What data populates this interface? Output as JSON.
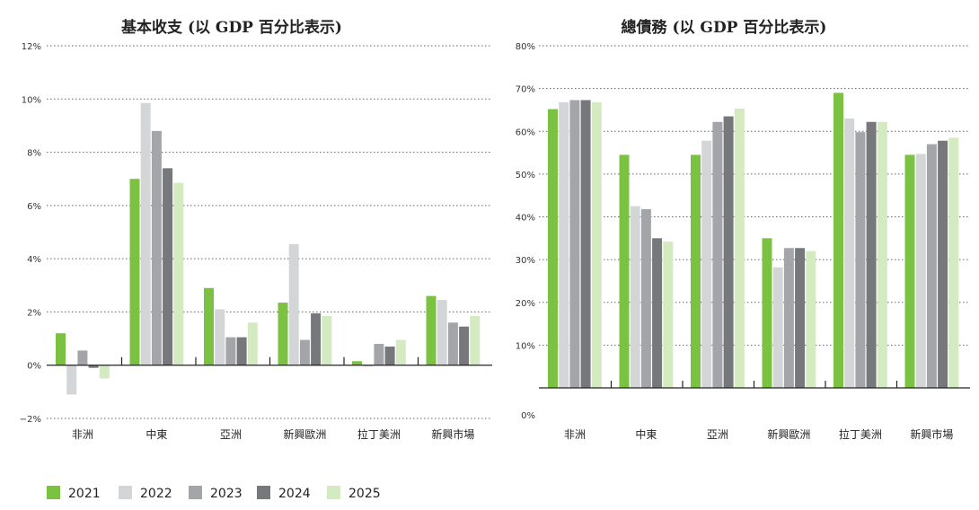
{
  "colors": {
    "2021": "#7cc242",
    "2022": "#d3d5d7",
    "2023": "#a3a5a8",
    "2024": "#77787b",
    "2025": "#d4eac0"
  },
  "legend": {
    "items": [
      {
        "label": "2021",
        "color": "#7cc242"
      },
      {
        "label": "2022",
        "color": "#d3d5d7"
      },
      {
        "label": "2023",
        "color": "#a3a5a8"
      },
      {
        "label": "2024",
        "color": "#77787b"
      },
      {
        "label": "2025",
        "color": "#d4eac0"
      }
    ]
  },
  "chart_data": [
    {
      "type": "bar",
      "title": "基本收支 (以 GDP 百分比表示)",
      "xlabel": "",
      "ylabel": "",
      "ylim": [
        -2,
        12
      ],
      "yticks": [
        -2,
        0,
        2,
        4,
        6,
        8,
        10,
        12
      ],
      "ytick_labels": [
        "−2%",
        "0%",
        "2%",
        "4%",
        "6%",
        "8%",
        "10%",
        "12%"
      ],
      "grid": true,
      "categories": [
        "非洲",
        "中東",
        "亞洲",
        "新興歐洲",
        "拉丁美洲",
        "新興市場"
      ],
      "series": [
        {
          "name": "2021",
          "values": [
            1.2,
            7.0,
            2.9,
            2.35,
            0.15,
            2.6
          ]
        },
        {
          "name": "2022",
          "values": [
            -1.1,
            9.85,
            2.1,
            4.55,
            -0.05,
            2.45
          ]
        },
        {
          "name": "2023",
          "values": [
            0.55,
            8.8,
            1.05,
            0.95,
            0.8,
            1.6
          ]
        },
        {
          "name": "2024",
          "values": [
            -0.1,
            7.4,
            1.05,
            1.95,
            0.7,
            1.45
          ]
        },
        {
          "name": "2025",
          "values": [
            -0.5,
            6.85,
            1.6,
            1.85,
            0.95,
            1.85
          ]
        }
      ]
    },
    {
      "type": "bar",
      "title": "總債務 (以 GDP 百分比表示)",
      "xlabel": "",
      "ylabel": "",
      "ylim": [
        0,
        80
      ],
      "yticks": [
        0,
        10,
        20,
        30,
        40,
        50,
        60,
        70,
        80
      ],
      "ytick_labels": [
        "0%",
        "10%",
        "20%",
        "30%",
        "40%",
        "50%",
        "60%",
        "70%",
        "80%"
      ],
      "grid": true,
      "categories": [
        "非洲",
        "中東",
        "亞洲",
        "新興歐洲",
        "拉丁美洲",
        "新興市場"
      ],
      "series": [
        {
          "name": "2021",
          "values": [
            65.2,
            54.5,
            54.5,
            35.0,
            69.0,
            54.5
          ]
        },
        {
          "name": "2022",
          "values": [
            66.8,
            42.5,
            57.8,
            28.2,
            63.0,
            54.7
          ]
        },
        {
          "name": "2023",
          "values": [
            67.3,
            41.8,
            62.2,
            32.7,
            59.8,
            57.0
          ]
        },
        {
          "name": "2024",
          "values": [
            67.3,
            35.0,
            63.5,
            32.7,
            62.2,
            57.8
          ]
        },
        {
          "name": "2025",
          "values": [
            66.8,
            34.2,
            65.3,
            32.0,
            62.2,
            58.5
          ]
        }
      ]
    }
  ]
}
